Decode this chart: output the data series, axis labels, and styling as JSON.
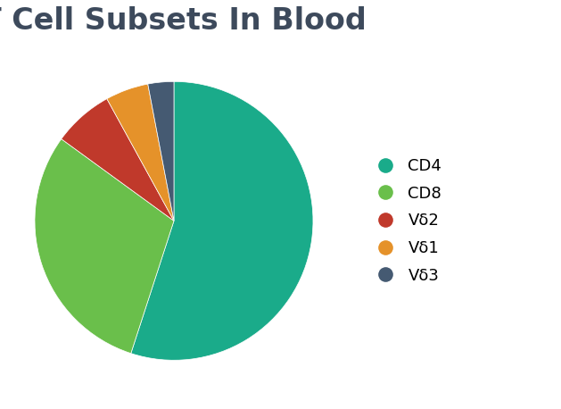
{
  "title": "T Cell Subsets In Blood",
  "title_color": "#3d4a5c",
  "title_fontsize": 24,
  "title_fontweight": "bold",
  "labels": [
    "CD4",
    "CD8",
    "Vδ2",
    "Vδ1",
    "Vδ3"
  ],
  "values": [
    55,
    30,
    7,
    5,
    3
  ],
  "colors": [
    "#1aab8a",
    "#6abf4b",
    "#c0392b",
    "#e5922a",
    "#455a72"
  ],
  "background_color": "#ffffff",
  "legend_fontsize": 13,
  "startangle": 90
}
